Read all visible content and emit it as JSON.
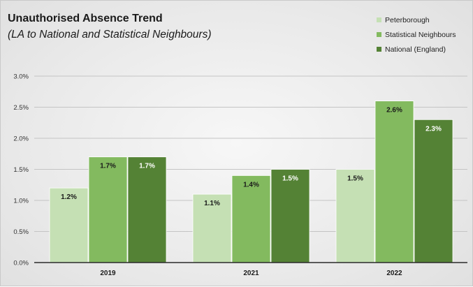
{
  "chart_data": {
    "type": "bar",
    "title": "Unauthorised Absence Trend",
    "subtitle": "(LA to National and Statistical Neighbours)",
    "categories": [
      "2019",
      "2021",
      "2022"
    ],
    "series": [
      {
        "name": "Peterborough",
        "values": [
          1.2,
          1.1,
          1.5
        ],
        "labels": [
          "1.2%",
          "1.1%",
          "1.5%"
        ],
        "color": "#c5e0b4"
      },
      {
        "name": "Statistical Neighbours",
        "values": [
          1.7,
          1.4,
          2.6
        ],
        "labels": [
          "1.7%",
          "1.4%",
          "2.6%"
        ],
        "color": "#83ba5f"
      },
      {
        "name": "National (England)",
        "values": [
          1.7,
          1.5,
          2.3
        ],
        "labels": [
          "1.7%",
          "1.5%",
          "2.3%"
        ],
        "color": "#548235"
      }
    ],
    "ylim": [
      0,
      3.0
    ],
    "yticks": [
      "0.0%",
      "0.5%",
      "1.0%",
      "1.5%",
      "2.0%",
      "2.5%",
      "3.0%"
    ],
    "grid": true,
    "legend_position": "top-right"
  }
}
